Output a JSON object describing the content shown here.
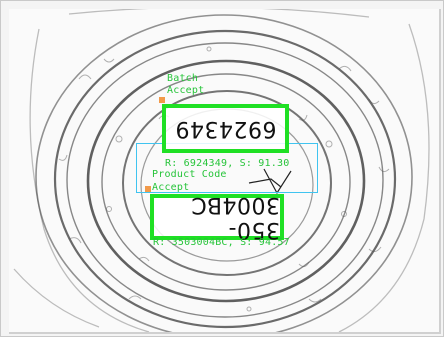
{
  "batch": {
    "title": "Batch",
    "status": "Accept",
    "text": "6924349",
    "result": "R: 6924349, S: 91.30"
  },
  "product_code": {
    "title": "Product Code",
    "status": "Accept",
    "text": "350-3004BC",
    "result": "R: 3503004BC, S: 94.57"
  },
  "colors": {
    "ocr_box": "#1fe024",
    "label_text": "#27c43a",
    "anchor": "#f29a4a",
    "roi": "#40c4f0"
  }
}
